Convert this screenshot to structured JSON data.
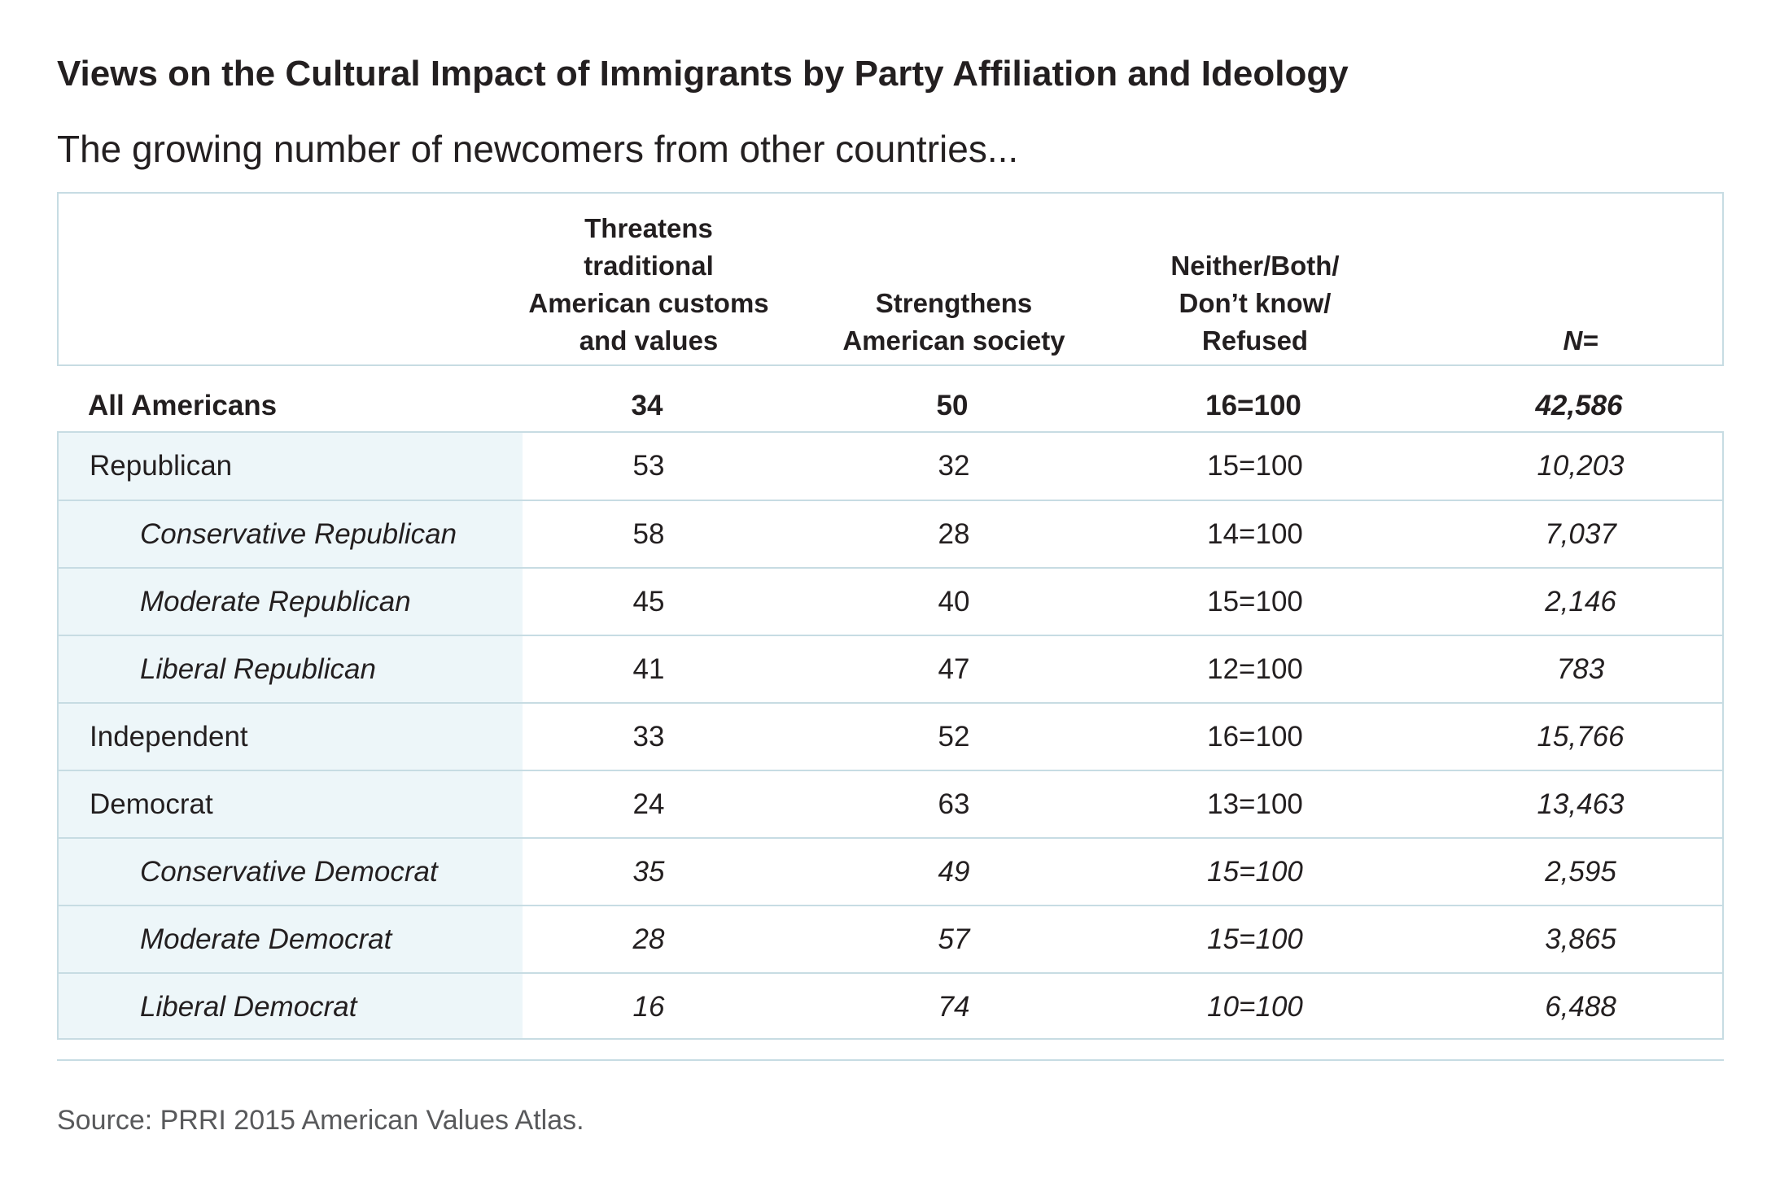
{
  "title": "Views on the Cultural Impact of Immigrants by Party Affiliation and Ideology",
  "subtitle": "The growing number of newcomers from other countries...",
  "source": "Source: PRRI 2015 American Values Atlas.",
  "colors": {
    "border": "#c7dce3",
    "shade": "#edf6f9",
    "text": "#231f20",
    "source_text": "#58595b"
  },
  "chart_data": {
    "type": "table",
    "columns": [
      "Threatens\ntraditional\nAmerican customs\nand values",
      "Strengthens\nAmerican society",
      "Neither/Both/\nDon’t know/\nRefused",
      "N="
    ],
    "all": {
      "label": "All Americans",
      "threatens": "34",
      "strengthens": "50",
      "neither": "16=100",
      "n": "42,586"
    },
    "rows": [
      {
        "label": "Republican",
        "threatens": "53",
        "strengthens": "32",
        "neither": "15=100",
        "n": "10,203"
      },
      {
        "label": "Conservative Republican",
        "threatens": "58",
        "strengthens": "28",
        "neither": "14=100",
        "n": "7,037"
      },
      {
        "label": "Moderate Republican",
        "threatens": "45",
        "strengthens": "40",
        "neither": "15=100",
        "n": "2,146"
      },
      {
        "label": "Liberal Republican",
        "threatens": "41",
        "strengthens": "47",
        "neither": "12=100",
        "n": "783"
      },
      {
        "label": "Independent",
        "threatens": "33",
        "strengthens": "52",
        "neither": "16=100",
        "n": "15,766"
      },
      {
        "label": "Democrat",
        "threatens": "24",
        "strengthens": "63",
        "neither": "13=100",
        "n": "13,463"
      },
      {
        "label": "Conservative Democrat",
        "threatens": "35",
        "strengthens": "49",
        "neither": "15=100",
        "n": "2,595"
      },
      {
        "label": "Moderate Democrat",
        "threatens": "28",
        "strengthens": "57",
        "neither": "15=100",
        "n": "3,865"
      },
      {
        "label": "Liberal Democrat",
        "threatens": "16",
        "strengthens": "74",
        "neither": "10=100",
        "n": "6,488"
      }
    ]
  }
}
